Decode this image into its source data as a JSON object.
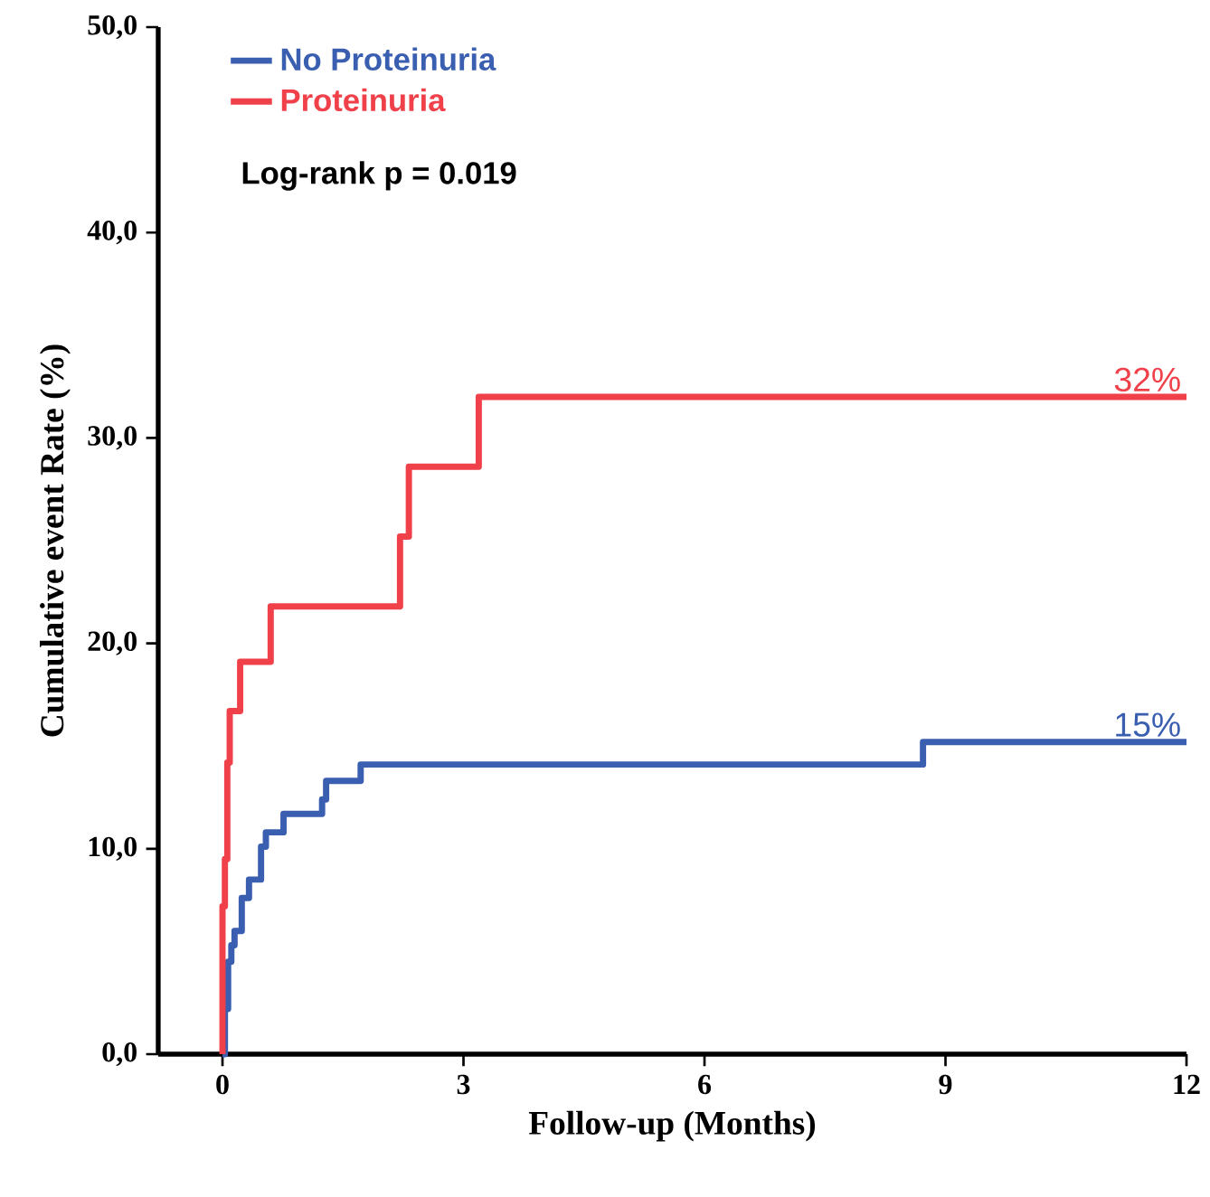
{
  "chart_data": {
    "type": "step",
    "xlabel": "Follow-up (Months)",
    "ylabel": "Cumulative event Rate (%)",
    "xlim": [
      -0.8,
      12
    ],
    "xticks": [
      0,
      3,
      6,
      9,
      12
    ],
    "ylim": [
      0,
      50
    ],
    "yticks": [
      {
        "value": 0,
        "label": "0,0"
      },
      {
        "value": 10,
        "label": "10,0"
      },
      {
        "value": 20,
        "label": "20,0"
      },
      {
        "value": 30,
        "label": "30,0"
      },
      {
        "value": 40,
        "label": "40,0"
      },
      {
        "value": 50,
        "label": "50,0"
      }
    ],
    "series": [
      {
        "name": "No Proteinuria",
        "color": "#3a5fb0",
        "x": [
          0,
          0.03,
          0.07,
          0.11,
          0.15,
          0.24,
          0.33,
          0.48,
          0.54,
          0.76,
          1.24,
          1.29,
          1.72,
          8.72,
          12
        ],
        "values": [
          0,
          2.2,
          4.5,
          5.3,
          6.0,
          7.6,
          8.5,
          10.1,
          10.8,
          11.7,
          12.4,
          13.3,
          14.1,
          15.2,
          15.2
        ]
      },
      {
        "name": "Proteinuria",
        "color": "#f0414a",
        "x": [
          0,
          0,
          0.03,
          0.06,
          0.09,
          0.22,
          0.6,
          2.21,
          2.32,
          3.19,
          12
        ],
        "values": [
          0,
          7.2,
          9.5,
          14.2,
          16.7,
          19.1,
          21.8,
          25.2,
          28.6,
          32.0,
          32.0
        ]
      }
    ],
    "annotations": [
      "Log-rank p = 0.019",
      {
        "text": "32%",
        "x": 12,
        "y": 32.0
      },
      {
        "text": "15%",
        "x": 12,
        "y": 15.2
      }
    ],
    "legend": "top left",
    "grid": false
  }
}
